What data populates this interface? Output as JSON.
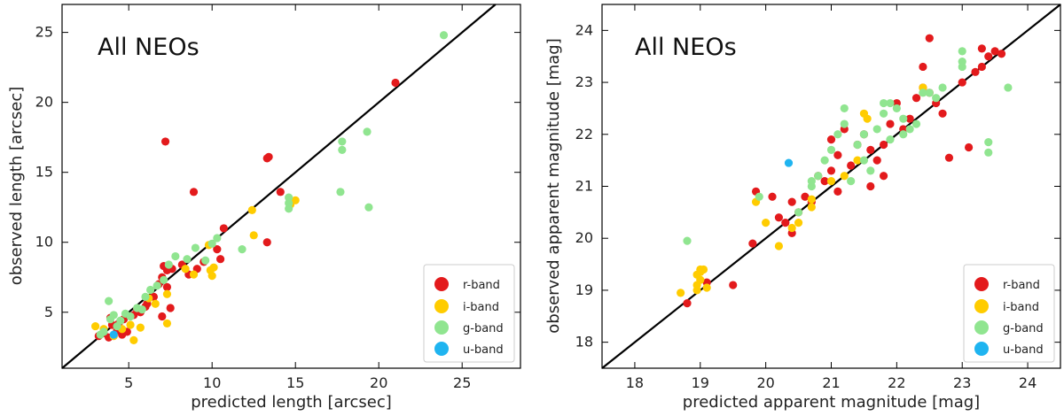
{
  "colors": {
    "r-band": "#e31a1c",
    "i-band": "#ffcc00",
    "g-band": "#90e590",
    "u-band": "#1fb4f0"
  },
  "chart_data": [
    {
      "type": "scatter",
      "title": "All NEOs",
      "xlabel": "predicted length [arcsec]",
      "ylabel": "observed length [arcsec]",
      "xlim": [
        1,
        28.5
      ],
      "ylim": [
        1,
        27
      ],
      "xticks": [
        5,
        10,
        15,
        20,
        25
      ],
      "yticks": [
        5,
        10,
        15,
        20,
        25
      ],
      "reference_line": "y = x",
      "legend": [
        "r-band",
        "i-band",
        "g-band",
        "u-band"
      ],
      "legend_position": "bottom-right",
      "series": [
        {
          "name": "r-band",
          "points": [
            [
              3.2,
              3.3
            ],
            [
              3.5,
              3.5
            ],
            [
              3.8,
              3.2
            ],
            [
              4.0,
              4.1
            ],
            [
              4.3,
              3.7
            ],
            [
              4.6,
              3.4
            ],
            [
              4.9,
              3.6
            ],
            [
              3.9,
              4.6
            ],
            [
              5.3,
              4.8
            ],
            [
              5.7,
              5.0
            ],
            [
              6.1,
              5.6
            ],
            [
              6.5,
              6.1
            ],
            [
              6.8,
              7.0
            ],
            [
              7.0,
              7.5
            ],
            [
              7.3,
              8.0
            ],
            [
              7.1,
              8.3
            ],
            [
              7.6,
              8.1
            ],
            [
              7.3,
              6.8
            ],
            [
              7.5,
              5.3
            ],
            [
              7.0,
              4.7
            ],
            [
              8.2,
              8.4
            ],
            [
              8.6,
              7.7
            ],
            [
              9.1,
              8.1
            ],
            [
              9.5,
              8.6
            ],
            [
              10.3,
              9.5
            ],
            [
              10.7,
              11.0
            ],
            [
              10.5,
              8.8
            ],
            [
              7.2,
              17.2
            ],
            [
              8.9,
              13.6
            ],
            [
              13.3,
              16.0
            ],
            [
              13.4,
              16.1
            ],
            [
              13.3,
              10.0
            ],
            [
              14.1,
              13.6
            ],
            [
              21.0,
              21.4
            ],
            [
              6.0,
              5.4
            ],
            [
              5.5,
              5.2
            ],
            [
              4.4,
              4.2
            ],
            [
              4.7,
              4.5
            ]
          ]
        },
        {
          "name": "i-band",
          "points": [
            [
              3.0,
              4.0
            ],
            [
              3.5,
              3.8
            ],
            [
              4.1,
              3.3
            ],
            [
              4.6,
              3.8
            ],
            [
              5.1,
              4.1
            ],
            [
              5.3,
              3.0
            ],
            [
              5.7,
              3.9
            ],
            [
              6.6,
              5.6
            ],
            [
              7.3,
              6.3
            ],
            [
              7.3,
              4.2
            ],
            [
              8.4,
              8.1
            ],
            [
              8.9,
              7.7
            ],
            [
              9.9,
              8.0
            ],
            [
              10.0,
              7.6
            ],
            [
              10.1,
              8.2
            ],
            [
              12.4,
              12.3
            ],
            [
              12.5,
              10.5
            ],
            [
              14.7,
              12.7
            ],
            [
              15.0,
              13.0
            ],
            [
              9.8,
              9.8
            ],
            [
              6.2,
              6.0
            ]
          ]
        },
        {
          "name": "g-band",
          "points": [
            [
              3.5,
              3.6
            ],
            [
              3.8,
              5.8
            ],
            [
              3.9,
              4.5
            ],
            [
              4.1,
              4.8
            ],
            [
              4.5,
              4.4
            ],
            [
              4.8,
              4.9
            ],
            [
              5.1,
              4.7
            ],
            [
              5.5,
              5.3
            ],
            [
              6.0,
              6.1
            ],
            [
              6.3,
              6.6
            ],
            [
              6.7,
              6.9
            ],
            [
              7.1,
              7.3
            ],
            [
              7.4,
              8.4
            ],
            [
              7.8,
              9.0
            ],
            [
              8.5,
              8.8
            ],
            [
              9.0,
              9.6
            ],
            [
              9.6,
              8.7
            ],
            [
              10.0,
              9.9
            ],
            [
              10.3,
              10.3
            ],
            [
              11.8,
              9.5
            ],
            [
              14.6,
              13.2
            ],
            [
              14.6,
              12.8
            ],
            [
              14.6,
              12.4
            ],
            [
              17.8,
              17.2
            ],
            [
              17.8,
              16.6
            ],
            [
              17.7,
              13.6
            ],
            [
              19.3,
              17.9
            ],
            [
              19.4,
              12.5
            ],
            [
              23.9,
              24.8
            ],
            [
              5.8,
              5.2
            ],
            [
              3.3,
              3.4
            ],
            [
              4.3,
              4.0
            ]
          ]
        },
        {
          "name": "u-band",
          "points": [
            [
              4.1,
              3.4
            ]
          ]
        }
      ]
    },
    {
      "type": "scatter",
      "title": "All NEOs",
      "xlabel": "predicted apparent magnitude [mag]",
      "ylabel": "observed apparent magnitude [mag]",
      "xlim": [
        17.5,
        24.5
      ],
      "ylim": [
        17.5,
        24.5
      ],
      "xticks": [
        18,
        19,
        20,
        21,
        22,
        23,
        24
      ],
      "yticks": [
        18,
        19,
        20,
        21,
        22,
        23,
        24
      ],
      "reference_line": "y = x",
      "legend": [
        "r-band",
        "i-band",
        "g-band",
        "u-band"
      ],
      "legend_position": "bottom-right",
      "series": [
        {
          "name": "r-band",
          "points": [
            [
              18.8,
              18.75
            ],
            [
              19.1,
              19.15
            ],
            [
              19.5,
              19.1
            ],
            [
              19.8,
              19.9
            ],
            [
              19.85,
              20.9
            ],
            [
              20.1,
              20.8
            ],
            [
              20.2,
              20.4
            ],
            [
              20.3,
              20.3
            ],
            [
              20.4,
              20.1
            ],
            [
              20.5,
              20.5
            ],
            [
              20.6,
              20.8
            ],
            [
              20.7,
              20.7
            ],
            [
              20.8,
              21.2
            ],
            [
              20.9,
              21.1
            ],
            [
              21.0,
              21.3
            ],
            [
              21.1,
              21.6
            ],
            [
              21.0,
              21.9
            ],
            [
              21.2,
              22.1
            ],
            [
              21.3,
              21.4
            ],
            [
              21.4,
              21.8
            ],
            [
              21.5,
              22.0
            ],
            [
              21.6,
              21.7
            ],
            [
              21.7,
              21.5
            ],
            [
              21.8,
              21.8
            ],
            [
              21.6,
              21.0
            ],
            [
              21.8,
              21.2
            ],
            [
              21.9,
              22.2
            ],
            [
              22.0,
              22.6
            ],
            [
              22.1,
              22.1
            ],
            [
              22.2,
              22.3
            ],
            [
              22.3,
              22.7
            ],
            [
              22.4,
              22.9
            ],
            [
              22.5,
              22.8
            ],
            [
              22.5,
              23.85
            ],
            [
              22.6,
              22.6
            ],
            [
              22.7,
              22.4
            ],
            [
              22.8,
              21.55
            ],
            [
              23.0,
              23.0
            ],
            [
              23.1,
              21.75
            ],
            [
              23.2,
              23.2
            ],
            [
              23.3,
              23.3
            ],
            [
              23.3,
              23.65
            ],
            [
              23.4,
              23.5
            ],
            [
              23.5,
              23.6
            ],
            [
              23.6,
              23.55
            ],
            [
              22.4,
              23.3
            ],
            [
              20.4,
              20.7
            ],
            [
              21.1,
              20.9
            ]
          ]
        },
        {
          "name": "i-band",
          "points": [
            [
              18.7,
              18.95
            ],
            [
              18.95,
              19.0
            ],
            [
              18.95,
              19.1
            ],
            [
              19.0,
              19.2
            ],
            [
              18.95,
              19.3
            ],
            [
              19.0,
              19.35
            ],
            [
              19.0,
              19.4
            ],
            [
              19.05,
              19.4
            ],
            [
              19.1,
              19.05
            ],
            [
              19.85,
              20.7
            ],
            [
              20.0,
              20.3
            ],
            [
              20.2,
              19.85
            ],
            [
              20.4,
              20.2
            ],
            [
              20.5,
              20.3
            ],
            [
              20.7,
              20.6
            ],
            [
              20.7,
              20.75
            ],
            [
              21.0,
              21.1
            ],
            [
              21.2,
              21.2
            ],
            [
              21.4,
              21.5
            ],
            [
              21.5,
              22.4
            ],
            [
              21.55,
              22.3
            ],
            [
              22.4,
              22.9
            ]
          ]
        },
        {
          "name": "g-band",
          "points": [
            [
              18.8,
              19.95
            ],
            [
              19.9,
              20.8
            ],
            [
              20.5,
              20.5
            ],
            [
              20.7,
              21.0
            ],
            [
              20.8,
              21.2
            ],
            [
              20.7,
              21.1
            ],
            [
              20.9,
              21.5
            ],
            [
              21.0,
              21.7
            ],
            [
              21.1,
              22.0
            ],
            [
              21.2,
              22.2
            ],
            [
              21.2,
              22.5
            ],
            [
              21.3,
              21.1
            ],
            [
              21.4,
              21.8
            ],
            [
              21.5,
              22.0
            ],
            [
              21.5,
              21.5
            ],
            [
              21.6,
              21.3
            ],
            [
              21.7,
              22.1
            ],
            [
              21.8,
              22.4
            ],
            [
              21.8,
              22.6
            ],
            [
              21.9,
              21.9
            ],
            [
              22.0,
              22.5
            ],
            [
              22.1,
              22.0
            ],
            [
              22.1,
              22.3
            ],
            [
              22.2,
              22.1
            ],
            [
              22.3,
              22.2
            ],
            [
              22.4,
              22.8
            ],
            [
              22.5,
              22.8
            ],
            [
              22.7,
              22.9
            ],
            [
              23.0,
              23.6
            ],
            [
              23.0,
              23.4
            ],
            [
              23.0,
              23.3
            ],
            [
              23.4,
              21.85
            ],
            [
              23.4,
              21.65
            ],
            [
              23.7,
              22.9
            ],
            [
              22.6,
              22.7
            ],
            [
              21.9,
              22.6
            ]
          ]
        },
        {
          "name": "u-band",
          "points": [
            [
              20.35,
              21.45
            ]
          ]
        }
      ]
    }
  ]
}
